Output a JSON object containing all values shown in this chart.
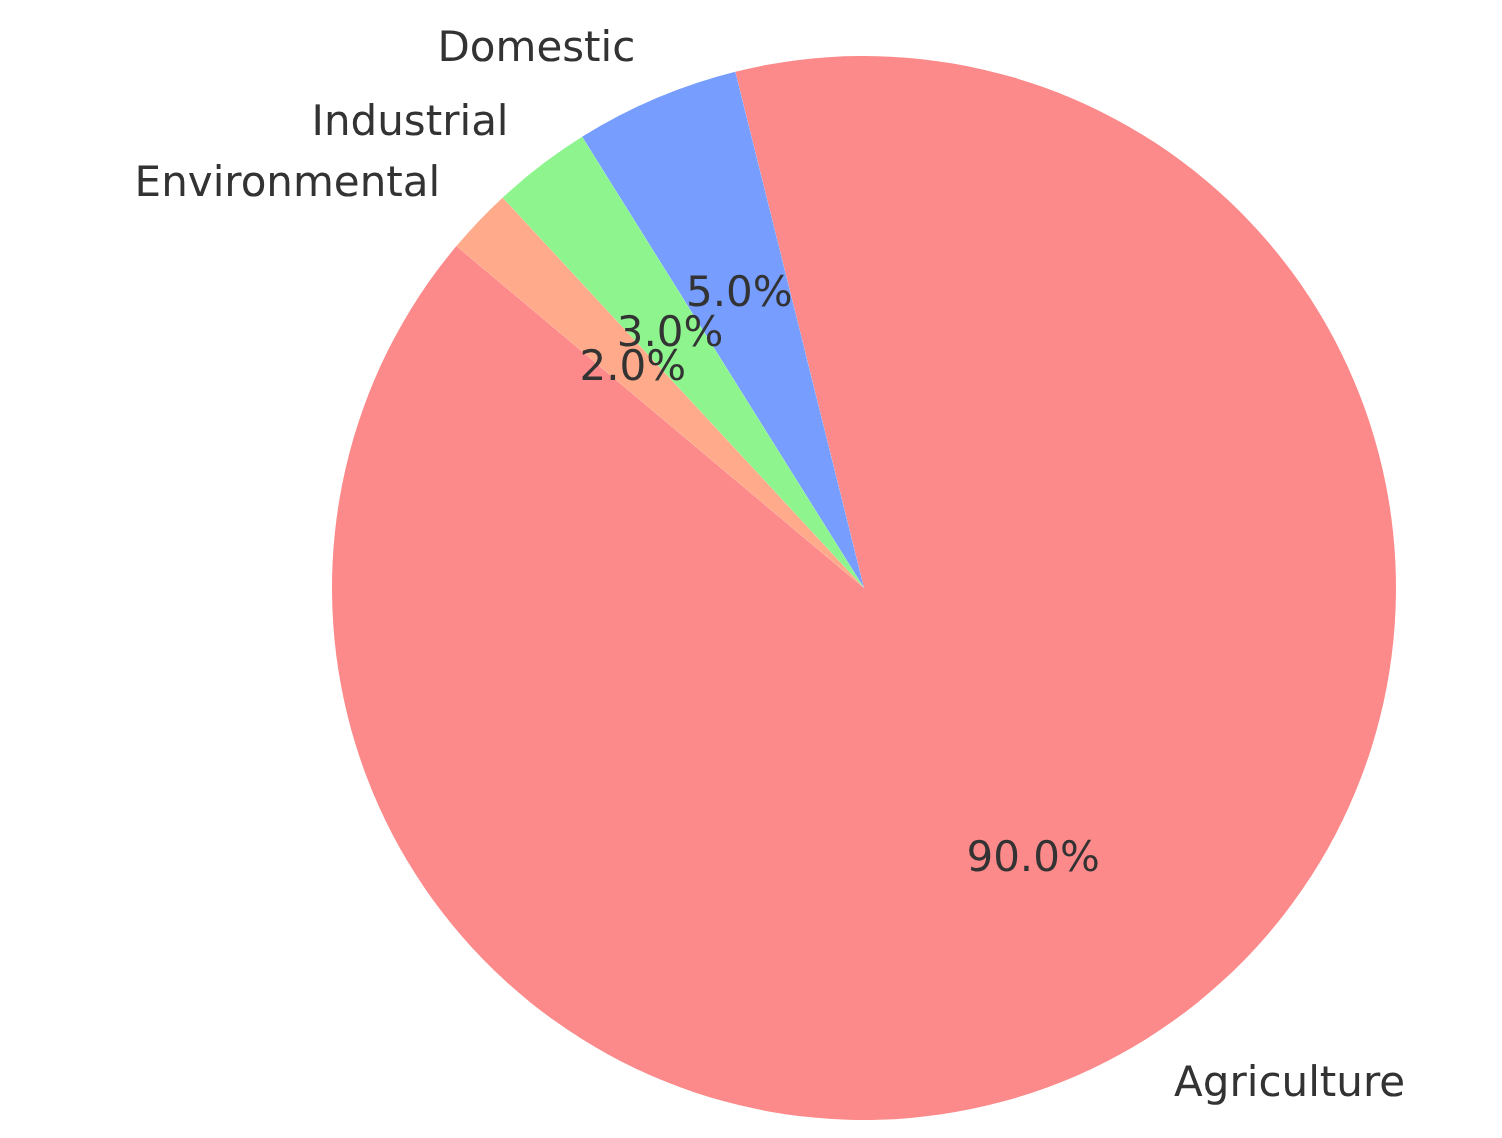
{
  "chart_data": {
    "type": "pie",
    "categories": [
      "Agriculture",
      "Domestic",
      "Industrial",
      "Environmental"
    ],
    "values": [
      90,
      5,
      3,
      2
    ],
    "value_labels": [
      "90.0%",
      "5.0%",
      "3.0%",
      "2.0%"
    ],
    "colors": [
      "#fd8a8a",
      "#779eff",
      "#8ef58e",
      "#ffaa8a"
    ]
  }
}
